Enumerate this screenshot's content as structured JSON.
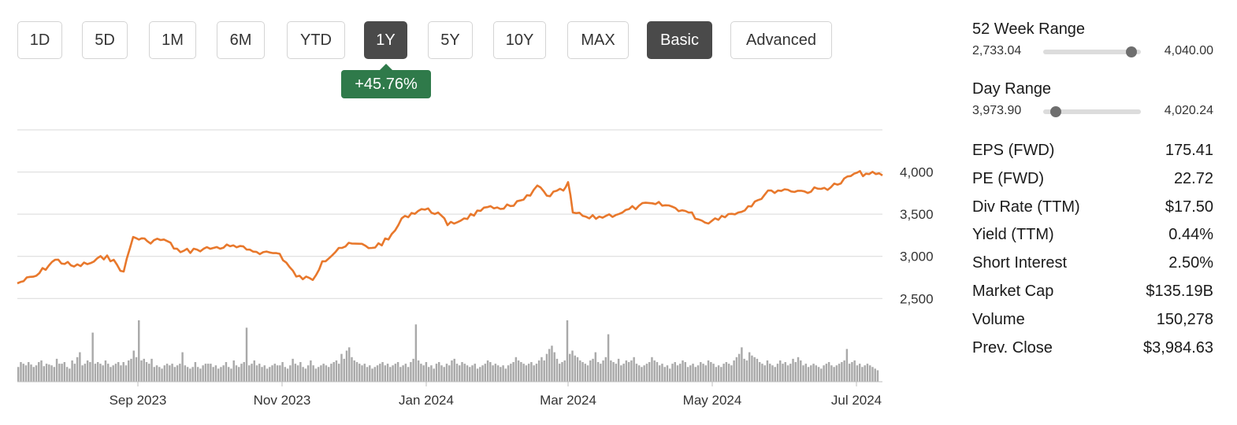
{
  "range_buttons": [
    {
      "label": "1D",
      "active": false
    },
    {
      "label": "5D",
      "active": false
    },
    {
      "label": "1M",
      "active": false
    },
    {
      "label": "6M",
      "active": false
    },
    {
      "label": "YTD",
      "active": false
    },
    {
      "label": "1Y",
      "active": true
    },
    {
      "label": "5Y",
      "active": false
    },
    {
      "label": "10Y",
      "active": false
    },
    {
      "label": "MAX",
      "active": false
    },
    {
      "label": "Basic",
      "active": true
    },
    {
      "label": "Advanced",
      "active": false
    }
  ],
  "change_tag": "+45.76%",
  "colors": {
    "line": "#e8782c",
    "volume": "#a9a9a9",
    "grid": "#d9d9d9",
    "positive": "#2f7a4a",
    "active_button": "#4a4a4a"
  },
  "week52": {
    "title": "52 Week Range",
    "low": "2,733.04",
    "high": "4,040.00",
    "position": 0.9
  },
  "day_range": {
    "title": "Day Range",
    "low": "3,973.90",
    "high": "4,020.24",
    "position": 0.13
  },
  "stats": [
    {
      "label": "EPS (FWD)",
      "value": "175.41"
    },
    {
      "label": "PE (FWD)",
      "value": "22.72"
    },
    {
      "label": "Div Rate (TTM)",
      "value": "$17.50"
    },
    {
      "label": "Yield (TTM)",
      "value": "0.44%"
    },
    {
      "label": "Short Interest",
      "value": "2.50%"
    },
    {
      "label": "Market Cap",
      "value": "$135.19B"
    },
    {
      "label": "Volume",
      "value": "150,278"
    },
    {
      "label": "Prev. Close",
      "value": "$3,984.63"
    }
  ],
  "chart_data": {
    "type": "line",
    "title": "",
    "xlabel": "",
    "ylabel": "",
    "x_ticks": [
      "Sep 2023",
      "Nov 2023",
      "Jan 2024",
      "Mar 2024",
      "May 2024",
      "Jul 2024"
    ],
    "y_ticks": [
      2500,
      3000,
      3500,
      4000
    ],
    "y_tick_labels": [
      "2,500",
      "3,000",
      "3,500",
      "4,000"
    ],
    "ylim": [
      2400,
      4500
    ],
    "xlim": [
      "2023-07-12",
      "2024-07-12"
    ],
    "grid": true,
    "series": [
      {
        "values": [
          [
            "2023-07-12",
            2680
          ],
          [
            "2023-07-20",
            2770
          ],
          [
            "2023-07-28",
            2960
          ],
          [
            "2023-08-05",
            2880
          ],
          [
            "2023-08-12",
            2920
          ],
          [
            "2023-08-19",
            3010
          ],
          [
            "2023-08-26",
            2820
          ],
          [
            "2023-08-30",
            3230
          ],
          [
            "2023-09-05",
            3180
          ],
          [
            "2023-09-12",
            3200
          ],
          [
            "2023-09-19",
            3050
          ],
          [
            "2023-09-26",
            3080
          ],
          [
            "2023-10-03",
            3100
          ],
          [
            "2023-10-10",
            3120
          ],
          [
            "2023-10-17",
            3080
          ],
          [
            "2023-10-24",
            3050
          ],
          [
            "2023-10-31",
            3030
          ],
          [
            "2023-11-07",
            2760
          ],
          [
            "2023-11-14",
            2720
          ],
          [
            "2023-11-18",
            2940
          ],
          [
            "2023-11-25",
            3100
          ],
          [
            "2023-12-02",
            3150
          ],
          [
            "2023-12-09",
            3100
          ],
          [
            "2023-12-16",
            3200
          ],
          [
            "2023-12-23",
            3480
          ],
          [
            "2023-12-30",
            3560
          ],
          [
            "2024-01-06",
            3520
          ],
          [
            "2024-01-10",
            3370
          ],
          [
            "2024-01-17",
            3450
          ],
          [
            "2024-01-24",
            3540
          ],
          [
            "2024-01-31",
            3580
          ],
          [
            "2024-02-07",
            3600
          ],
          [
            "2024-02-14",
            3720
          ],
          [
            "2024-02-17",
            3840
          ],
          [
            "2024-02-21",
            3720
          ],
          [
            "2024-02-28",
            3780
          ],
          [
            "2024-03-01",
            3880
          ],
          [
            "2024-03-03",
            3520
          ],
          [
            "2024-03-10",
            3450
          ],
          [
            "2024-03-17",
            3480
          ],
          [
            "2024-03-24",
            3520
          ],
          [
            "2024-03-31",
            3600
          ],
          [
            "2024-04-07",
            3620
          ],
          [
            "2024-04-14",
            3590
          ],
          [
            "2024-04-21",
            3520
          ],
          [
            "2024-04-28",
            3400
          ],
          [
            "2024-05-05",
            3480
          ],
          [
            "2024-05-12",
            3520
          ],
          [
            "2024-05-19",
            3650
          ],
          [
            "2024-05-26",
            3780
          ],
          [
            "2024-06-02",
            3790
          ],
          [
            "2024-06-09",
            3770
          ],
          [
            "2024-06-16",
            3800
          ],
          [
            "2024-06-23",
            3850
          ],
          [
            "2024-06-30",
            3980
          ],
          [
            "2024-07-05",
            3980
          ],
          [
            "2024-07-12",
            3960
          ]
        ]
      }
    ],
    "volume": [
      18,
      24,
      22,
      20,
      24,
      21,
      18,
      20,
      24,
      26,
      19,
      22,
      21,
      20,
      18,
      28,
      22,
      22,
      24,
      18,
      16,
      26,
      22,
      30,
      36,
      20,
      22,
      26,
      24,
      60,
      22,
      24,
      22,
      20,
      26,
      22,
      18,
      20,
      22,
      24,
      20,
      24,
      20,
      26,
      28,
      38,
      30,
      75,
      26,
      28,
      24,
      22,
      28,
      18,
      20,
      18,
      16,
      20,
      22,
      20,
      22,
      18,
      20,
      22,
      36,
      20,
      18,
      16,
      18,
      24,
      18,
      16,
      20,
      22,
      22,
      22,
      18,
      20,
      16,
      18,
      20,
      24,
      18,
      16,
      26,
      20,
      18,
      22,
      24,
      66,
      20,
      22,
      26,
      20,
      22,
      18,
      20,
      16,
      18,
      20,
      22,
      20,
      20,
      24,
      18,
      16,
      20,
      28,
      22,
      20,
      24,
      18,
      16,
      20,
      26,
      20,
      16,
      18,
      20,
      22,
      20,
      18,
      22,
      24,
      26,
      22,
      34,
      28,
      38,
      42,
      30,
      26,
      24,
      22,
      20,
      22,
      18,
      20,
      16,
      18,
      20,
      22,
      24,
      20,
      22,
      18,
      20,
      22,
      24,
      18,
      20,
      22,
      18,
      24,
      28,
      70,
      26,
      22,
      20,
      24,
      18,
      20,
      16,
      22,
      24,
      20,
      18,
      22,
      20,
      26,
      28,
      22,
      20,
      24,
      22,
      20,
      18,
      20,
      22,
      16,
      18,
      20,
      22,
      26,
      24,
      20,
      22,
      20,
      18,
      20,
      16,
      20,
      22,
      24,
      30,
      26,
      24,
      22,
      20,
      22,
      24,
      20,
      22,
      26,
      30,
      26,
      34,
      40,
      44,
      36,
      28,
      22,
      24,
      26,
      75,
      34,
      38,
      32,
      30,
      26,
      24,
      22,
      20,
      26,
      28,
      36,
      24,
      22,
      26,
      30,
      58,
      26,
      24,
      22,
      28,
      20,
      22,
      26,
      24,
      26,
      30,
      22,
      20,
      18,
      20,
      22,
      24,
      30,
      26,
      24,
      20,
      22,
      18,
      20,
      16,
      22,
      24,
      20,
      22,
      26,
      24,
      18,
      20,
      22,
      18,
      20,
      24,
      22,
      20,
      26,
      24,
      22,
      18,
      20,
      18,
      22,
      24,
      22,
      20,
      26,
      30,
      34,
      42,
      28,
      26,
      36,
      32,
      30,
      28,
      24,
      22,
      20,
      26,
      22,
      20,
      18,
      22,
      26,
      22,
      24,
      20,
      22,
      28,
      24,
      30,
      26,
      20,
      22,
      18,
      20,
      22,
      20,
      18,
      16,
      20,
      22,
      24,
      20,
      18,
      20,
      22,
      24,
      26,
      40,
      22,
      24,
      26,
      20,
      22,
      18,
      20,
      22,
      20,
      18,
      16,
      14
    ]
  }
}
